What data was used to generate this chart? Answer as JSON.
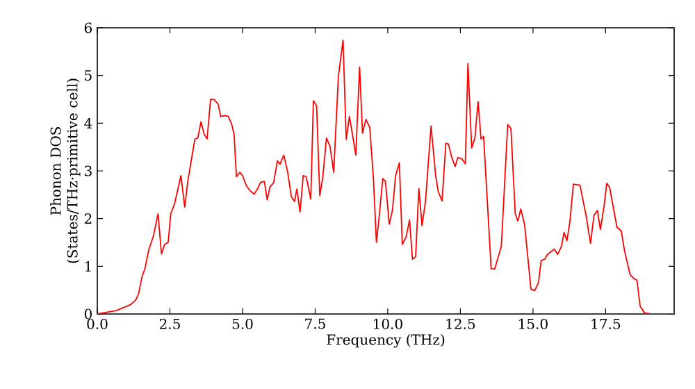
{
  "chart_data": {
    "type": "line",
    "xlabel": "Frequency (THz)",
    "ylabel": "Phonon DOS (States/THz·primitive cell)",
    "xlim": [
      0,
      19.86
    ],
    "ylim": [
      0,
      6
    ],
    "xticks": [
      {
        "value": 0,
        "label": "0.0"
      },
      {
        "value": 2.5,
        "label": "2.5"
      },
      {
        "value": 5,
        "label": "5.0"
      },
      {
        "value": 7.5,
        "label": "7.5"
      },
      {
        "value": 10,
        "label": "10.0"
      },
      {
        "value": 12.5,
        "label": "12.5"
      },
      {
        "value": 15,
        "label": "15.0"
      },
      {
        "value": 17.5,
        "label": "17.5"
      }
    ],
    "yticks": [
      0,
      1,
      2,
      3,
      4,
      5,
      6
    ],
    "marker": "none",
    "line_style": "solid",
    "series": [
      {
        "color": "#ff0000",
        "x": [
          0,
          0.65,
          1.13,
          1.32,
          1.42,
          1.53,
          1.64,
          1.77,
          1.93,
          2.09,
          2.21,
          2.32,
          2.44,
          2.53,
          2.66,
          2.88,
          3.01,
          3.12,
          3.23,
          3.36,
          3.46,
          3.57,
          3.68,
          3.78,
          3.9,
          4.03,
          4.16,
          4.25,
          4.41,
          4.51,
          4.63,
          4.71,
          4.79,
          4.91,
          5.0,
          5.14,
          5.27,
          5.4,
          5.53,
          5.62,
          5.75,
          5.85,
          5.94,
          6.07,
          6.2,
          6.29,
          6.42,
          6.55,
          6.68,
          6.79,
          6.87,
          6.98,
          7.09,
          7.19,
          7.35,
          7.44,
          7.55,
          7.66,
          7.76,
          7.89,
          8.01,
          8.14,
          8.3,
          8.46,
          8.57,
          8.68,
          8.81,
          8.9,
          9.03,
          9.13,
          9.25,
          9.38,
          9.51,
          9.61,
          9.7,
          9.83,
          9.92,
          10.05,
          10.16,
          10.27,
          10.4,
          10.5,
          10.63,
          10.75,
          10.85,
          10.96,
          11.07,
          11.18,
          11.3,
          11.49,
          11.65,
          11.74,
          11.87,
          12.0,
          12.09,
          12.2,
          12.32,
          12.41,
          12.54,
          12.67,
          12.76,
          12.89,
          13.0,
          13.11,
          13.21,
          13.3,
          13.56,
          13.68,
          13.91,
          14.13,
          14.24,
          14.39,
          14.48,
          14.58,
          14.71,
          14.93,
          15.06,
          15.19,
          15.28,
          15.41,
          15.5,
          15.63,
          15.73,
          15.85,
          15.98,
          16.07,
          16.17,
          16.27,
          16.39,
          16.62,
          16.84,
          16.98,
          17.1,
          17.22,
          17.32,
          17.45,
          17.54,
          17.64,
          17.89,
          18.04,
          18.15,
          18.34,
          18.47,
          18.58,
          18.69,
          18.85,
          19.06,
          19.86
        ],
        "values": [
          0,
          0.07,
          0.19,
          0.29,
          0.42,
          0.76,
          0.95,
          1.34,
          1.63,
          2.1,
          1.26,
          1.46,
          1.5,
          2.1,
          2.31,
          2.9,
          2.24,
          2.8,
          3.2,
          3.67,
          3.69,
          4.03,
          3.77,
          3.67,
          4.5,
          4.49,
          4.4,
          4.14,
          4.16,
          4.14,
          3.97,
          3.76,
          2.88,
          2.97,
          2.9,
          2.68,
          2.58,
          2.51,
          2.64,
          2.76,
          2.78,
          2.39,
          2.66,
          2.75,
          3.21,
          3.14,
          3.33,
          2.99,
          2.46,
          2.36,
          2.62,
          2.14,
          2.9,
          2.88,
          2.41,
          4.47,
          4.37,
          2.48,
          2.85,
          3.69,
          3.52,
          2.97,
          4.98,
          5.74,
          3.66,
          4.14,
          3.67,
          3.33,
          5.18,
          3.79,
          4.08,
          3.91,
          2.8,
          1.5,
          2.02,
          2.84,
          2.78,
          1.88,
          2.17,
          2.9,
          3.17,
          1.46,
          1.61,
          1.97,
          1.15,
          1.2,
          2.63,
          1.85,
          2.37,
          3.94,
          2.9,
          2.56,
          2.37,
          3.58,
          3.56,
          3.29,
          3.09,
          3.28,
          3.26,
          3.15,
          5.25,
          3.48,
          3.69,
          4.45,
          3.67,
          3.72,
          0.95,
          0.94,
          1.42,
          3.97,
          3.89,
          2.1,
          1.95,
          2.2,
          1.88,
          0.52,
          0.49,
          0.66,
          1.12,
          1.15,
          1.25,
          1.31,
          1.36,
          1.25,
          1.42,
          1.71,
          1.54,
          1.93,
          2.72,
          2.7,
          2.02,
          1.48,
          2.07,
          2.17,
          1.77,
          2.27,
          2.74,
          2.65,
          1.82,
          1.74,
          1.33,
          0.83,
          0.74,
          0.71,
          0.16,
          0.02,
          0,
          0
        ]
      }
    ]
  }
}
